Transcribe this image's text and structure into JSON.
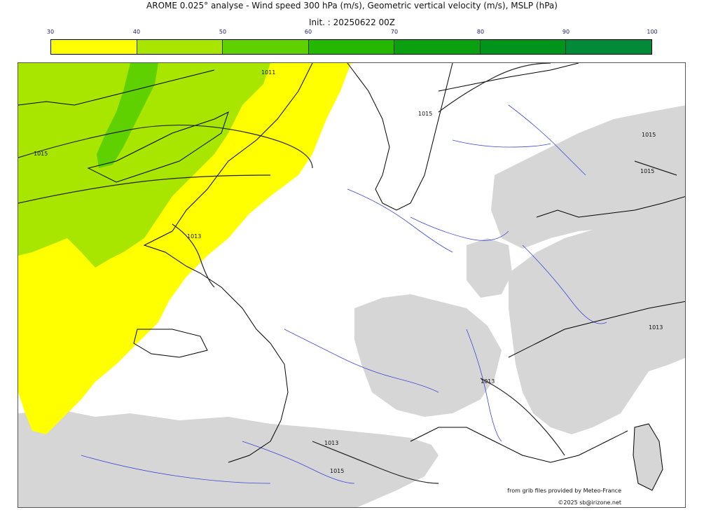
{
  "header": {
    "title": "AROME 0.025° analyse - Wind speed 300 hPa (m/s), Geometric vertical velocity (m/s), MSLP (hPa)",
    "init": "Init. : 20250622 00Z"
  },
  "colorbar": {
    "ticks": [
      "30",
      "40",
      "50",
      "60",
      "70",
      "80",
      "90",
      "100"
    ],
    "colors": [
      "#ffff00",
      "#a8e600",
      "#5fd000",
      "#24b800",
      "#0aa010",
      "#00951a",
      "#028a38",
      "#06764e"
    ]
  },
  "map": {
    "shading_colors": {
      "wind_30_40": "#ffff00",
      "wind_40_50": "#a8e600",
      "wind_50_60": "#5fd000",
      "vertical_velocity_area": "#d6d6d6",
      "rivers": "#3a48d6",
      "coast": "#000000"
    },
    "isobar_labels": [
      "1015",
      "1011",
      "1015",
      "1013",
      "1015",
      "1013",
      "1013",
      "1013",
      "1015",
      "1015"
    ]
  },
  "credits": {
    "source": "from grib files provided by Meteo-France",
    "copyright": "©2025 sb@irizone.net"
  }
}
